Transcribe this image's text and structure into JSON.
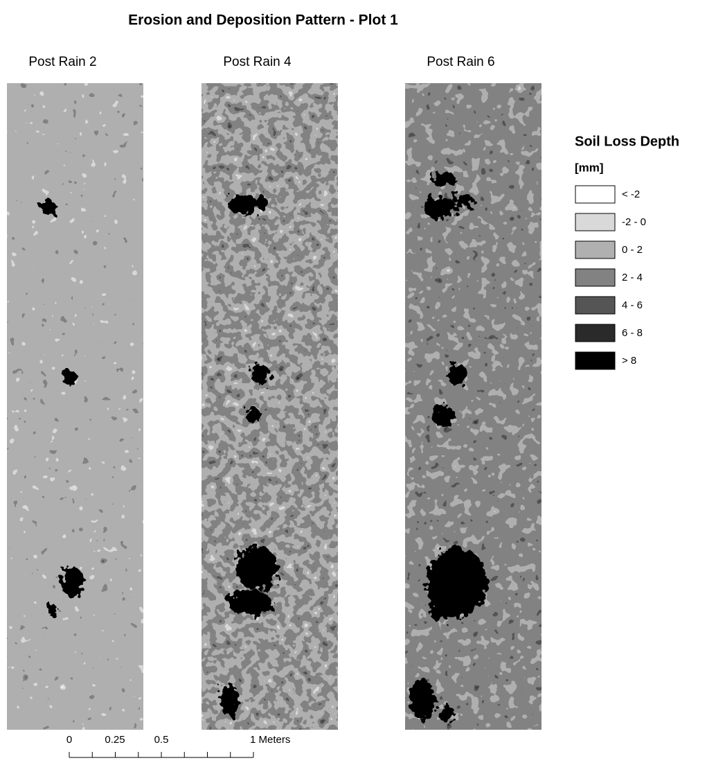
{
  "title": "Erosion and Deposition Pattern - Plot 1",
  "panels": [
    {
      "label": "Post Rain 2"
    },
    {
      "label": "Post Rain 4"
    },
    {
      "label": "Post Rain 6"
    }
  ],
  "legend": {
    "title": "Soil Loss Depth",
    "unit": "[mm]",
    "items": [
      {
        "label": "< -2",
        "color": "#ffffff"
      },
      {
        "label": "-2 - 0",
        "color": "#d9d9d9"
      },
      {
        "label": "0 - 2",
        "color": "#b0b0b0"
      },
      {
        "label": "2 - 4",
        "color": "#828282"
      },
      {
        "label": "4 - 6",
        "color": "#555555"
      },
      {
        "label": "6 - 8",
        "color": "#2a2a2a"
      },
      {
        "label": "> 8",
        "color": "#000000"
      }
    ]
  },
  "scale_bar": {
    "labels": [
      "0",
      "0.25",
      "0.5",
      "1 Meters"
    ]
  }
}
